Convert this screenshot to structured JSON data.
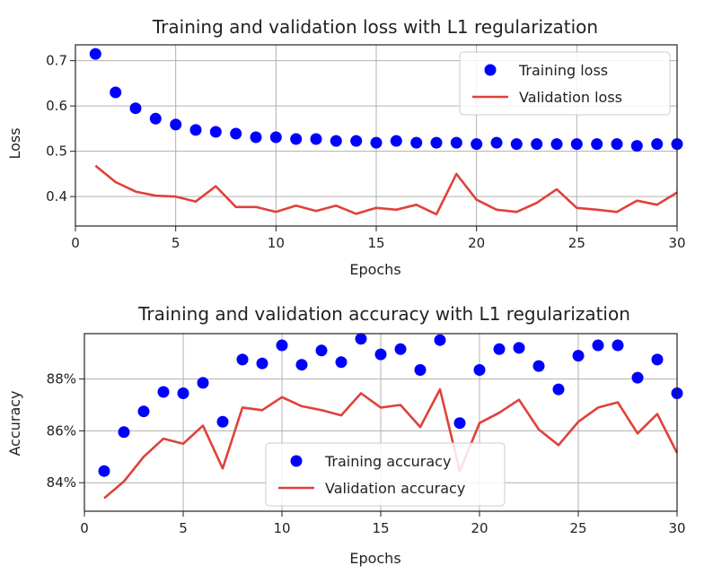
{
  "chart_data": [
    {
      "type": "line",
      "title": "Training and validation loss with L1 regularization",
      "xlabel": "Epochs",
      "ylabel": "Loss",
      "xlim": [
        0,
        30
      ],
      "ylim": [
        0.335,
        0.735
      ],
      "xticks": [
        0,
        5,
        10,
        15,
        20,
        25,
        30
      ],
      "yticks": [
        0.4,
        0.5,
        0.6,
        0.7
      ],
      "ytick_labels": [
        "0.4",
        "0.5",
        "0.6",
        "0.7"
      ],
      "grid": true,
      "legend_position": "upper-right",
      "x": [
        1,
        2,
        3,
        4,
        5,
        6,
        7,
        8,
        9,
        10,
        11,
        12,
        13,
        14,
        15,
        16,
        17,
        18,
        19,
        20,
        21,
        22,
        23,
        24,
        25,
        26,
        27,
        28,
        29,
        30
      ],
      "series": [
        {
          "name": "Training loss",
          "style": "dots",
          "color": "#0000ff",
          "values": [
            0.715,
            0.63,
            0.595,
            0.572,
            0.559,
            0.547,
            0.543,
            0.539,
            0.531,
            0.531,
            0.527,
            0.527,
            0.523,
            0.523,
            0.519,
            0.523,
            0.519,
            0.519,
            0.519,
            0.516,
            0.519,
            0.516,
            0.516,
            0.516,
            0.516,
            0.516,
            0.516,
            0.512,
            0.516,
            0.516
          ]
        },
        {
          "name": "Validation loss",
          "style": "line",
          "color": "#e0413a",
          "values": [
            0.468,
            0.432,
            0.411,
            0.402,
            0.4,
            0.389,
            0.423,
            0.377,
            0.377,
            0.366,
            0.38,
            0.368,
            0.38,
            0.362,
            0.375,
            0.371,
            0.382,
            0.361,
            0.45,
            0.393,
            0.371,
            0.366,
            0.386,
            0.416,
            0.375,
            0.371,
            0.366,
            0.391,
            0.382,
            0.409
          ]
        }
      ]
    },
    {
      "type": "line",
      "title": "Training and validation accuracy with L1 regularization",
      "xlabel": "Epochs",
      "ylabel": "Accuracy",
      "xlim": [
        0,
        30
      ],
      "ylim": [
        82.9,
        89.75
      ],
      "xticks": [
        0,
        5,
        10,
        15,
        20,
        25,
        30
      ],
      "yticks": [
        84,
        86,
        88
      ],
      "ytick_labels": [
        "84%",
        "86%",
        "88%"
      ],
      "grid": true,
      "legend_position": "lower-center",
      "x": [
        1,
        2,
        3,
        4,
        5,
        6,
        7,
        8,
        9,
        10,
        11,
        12,
        13,
        14,
        15,
        16,
        17,
        18,
        19,
        20,
        21,
        22,
        23,
        24,
        25,
        26,
        27,
        28,
        29,
        30
      ],
      "series": [
        {
          "name": "Training accuracy",
          "style": "dots",
          "color": "#0000ff",
          "values": [
            84.45,
            85.95,
            86.75,
            87.5,
            87.45,
            87.85,
            86.35,
            88.75,
            88.6,
            89.3,
            88.55,
            89.1,
            88.65,
            89.55,
            88.95,
            89.15,
            88.35,
            89.5,
            86.3,
            88.35,
            89.15,
            89.2,
            88.5,
            87.6,
            88.9,
            89.3,
            89.3,
            88.05,
            88.75,
            87.45
          ]
        },
        {
          "name": "Validation accuracy",
          "style": "line",
          "color": "#e0413a",
          "values": [
            83.4,
            84.05,
            85.0,
            85.7,
            85.5,
            86.2,
            84.55,
            86.9,
            86.8,
            87.3,
            86.95,
            86.8,
            86.6,
            87.45,
            86.9,
            87.0,
            86.15,
            87.6,
            84.45,
            86.3,
            86.7,
            87.2,
            86.05,
            85.45,
            86.35,
            86.9,
            87.1,
            85.9,
            86.65,
            85.15
          ]
        }
      ]
    }
  ]
}
